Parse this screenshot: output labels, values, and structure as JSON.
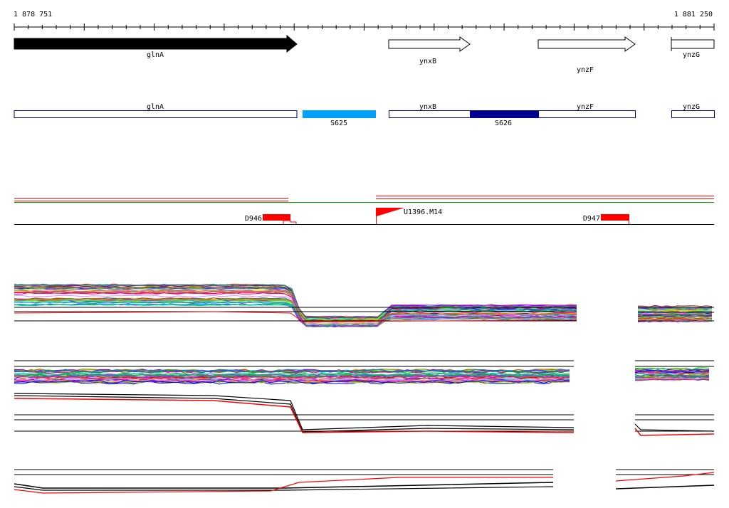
{
  "ruler": {
    "start_label": "1 878 751",
    "end_label": "1 881 250"
  },
  "genes": [
    {
      "name": "glnA",
      "strand": "+",
      "style": "filled"
    },
    {
      "name": "ynxB",
      "strand": "+",
      "style": "outline"
    },
    {
      "name": "ynzF",
      "strand": "+",
      "style": "outline"
    },
    {
      "name": "ynzG",
      "strand": "+",
      "style": "outline"
    }
  ],
  "segments": [
    {
      "name": "glnA",
      "kind": "gene"
    },
    {
      "name": "S625",
      "kind": "segment",
      "color": "#00a0ff"
    },
    {
      "name": "ynxB",
      "kind": "gene"
    },
    {
      "name": "S626",
      "kind": "segment",
      "color": "#000090"
    },
    {
      "name": "ynzF",
      "kind": "gene"
    },
    {
      "name": "ynzG",
      "kind": "gene"
    }
  ],
  "markers": [
    {
      "name": "D946",
      "type": "deletion",
      "color": "#ff0000"
    },
    {
      "name": "U1396.M14",
      "type": "flag",
      "color": "#ff0000"
    },
    {
      "name": "D947",
      "type": "deletion",
      "color": "#ff0000"
    }
  ],
  "colors": {
    "gene_outline": "#000080",
    "marker": "#ff0000",
    "guide_green": "#00b000"
  }
}
